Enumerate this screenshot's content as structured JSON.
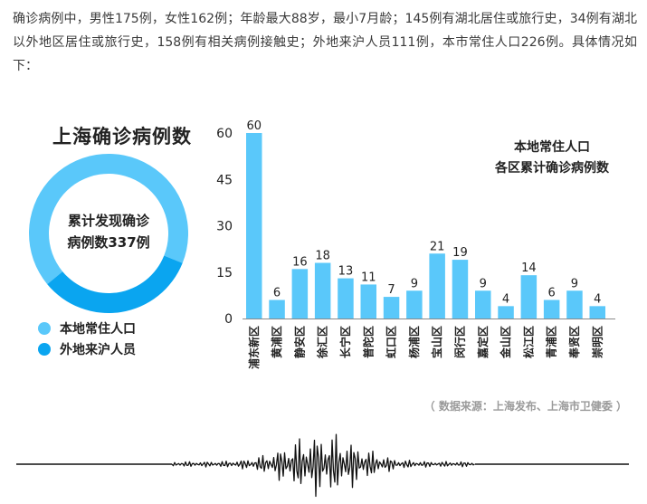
{
  "intro_text": "确诊病例中，男性175例，女性162例；年龄最大88岁，最小7月龄；145例有湖北居住或旅行史，34例有湖北以外地区居住或旅行史，158例有相关病例接触史；外地来沪人员111例，本市常住人口226例。具体情况如下：",
  "donut": {
    "title": "上海确诊病例数",
    "center_line1": "累计发现确诊",
    "center_line2": "病例数337例",
    "legend": [
      {
        "label": "本地常住人口",
        "color": "#5ac8fa"
      },
      {
        "label": "外地来沪人员",
        "color": "#0aa5f0"
      }
    ]
  },
  "chart_data": [
    {
      "type": "pie",
      "title": "上海确诊病例数",
      "categories": [
        "本地常住人口",
        "外地来沪人员"
      ],
      "values": [
        226,
        111
      ],
      "colors": [
        "#5ac8fa",
        "#0aa5f0"
      ]
    },
    {
      "type": "bar",
      "title": "本地常住人口各区累计确诊病例数",
      "title_lines": [
        "本地常住人口",
        "各区累计确诊病例数"
      ],
      "categories": [
        "浦东新区",
        "黄浦区",
        "静安区",
        "徐汇区",
        "长宁区",
        "普陀区",
        "虹口区",
        "杨浦区",
        "宝山区",
        "闵行区",
        "嘉定区",
        "金山区",
        "松江区",
        "青浦区",
        "奉贤区",
        "崇明区"
      ],
      "values": [
        60,
        6,
        16,
        18,
        13,
        11,
        7,
        9,
        21,
        19,
        9,
        4,
        14,
        6,
        9,
        4
      ],
      "yticks": [
        0,
        15,
        30,
        45,
        60
      ],
      "ylim": [
        0,
        60
      ],
      "grid": false,
      "bar_color": "#5ac8fa",
      "xlabel": "",
      "ylabel": ""
    }
  ],
  "source": "（ 数据来源：上海发布、上海市卫健委 ）"
}
